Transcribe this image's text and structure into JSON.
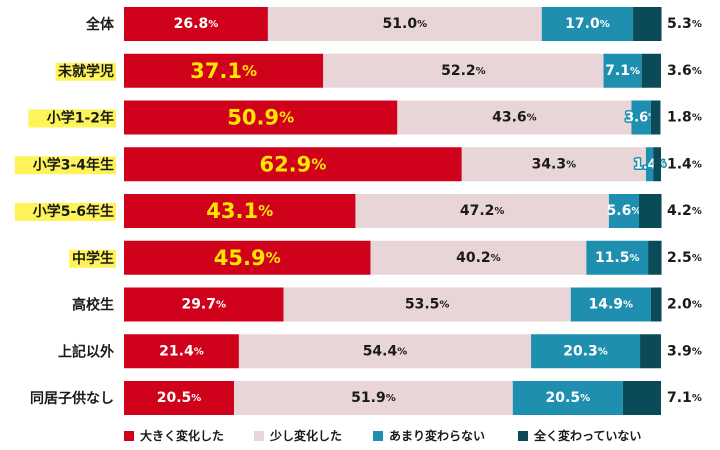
{
  "chart_data": {
    "type": "bar",
    "orientation": "horizontal",
    "stacked": true,
    "percent_suffix": "%",
    "xlim": [
      0,
      100
    ],
    "grid": false,
    "legend_position": "bottom",
    "categories": [
      "全体",
      "未就学児",
      "小学1-2年",
      "小学3-4年生",
      "小学5-6年生",
      "中学生",
      "高校生",
      "上記以外",
      "同居子供なし"
    ],
    "highlighted_categories": [
      1,
      2,
      3,
      4,
      5
    ],
    "series": [
      {
        "name": "大きく変化した",
        "color": "#d0021b",
        "values": [
          26.8,
          37.1,
          50.9,
          62.9,
          43.1,
          45.9,
          29.7,
          21.4,
          20.5
        ]
      },
      {
        "name": "少し変化した",
        "color": "#e8d5d8",
        "values": [
          51.0,
          52.2,
          43.6,
          34.3,
          47.2,
          40.2,
          53.5,
          54.4,
          51.9
        ]
      },
      {
        "name": "あまり変わらない",
        "color": "#1f8fb0",
        "values": [
          17.0,
          7.1,
          3.6,
          1.4,
          5.6,
          11.5,
          14.9,
          20.3,
          20.5
        ]
      },
      {
        "name": "全く変わっていない",
        "color": "#0b4a57",
        "values": [
          5.3,
          3.6,
          1.8,
          1.4,
          4.2,
          2.5,
          2.0,
          3.9,
          7.1
        ]
      }
    ]
  },
  "colors": {
    "highlight": "#fff35a",
    "emphasis_text": "#ffe600",
    "dark_text": "#1a1a1a",
    "light_text": "#ffffff"
  }
}
